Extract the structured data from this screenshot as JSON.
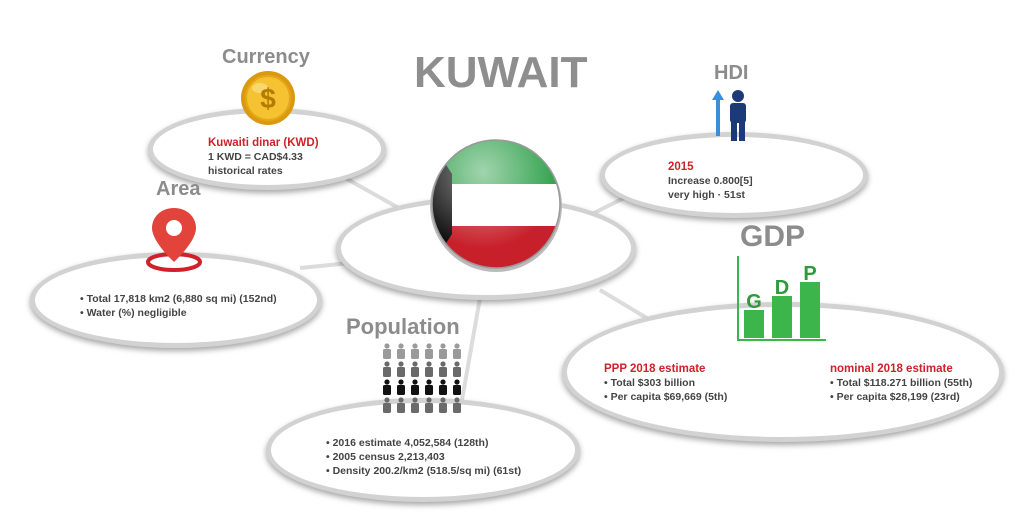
{
  "title": "KUWAIT",
  "colors": {
    "heading": "#8c8c8c",
    "accent_red": "#d0202a",
    "text": "#444444",
    "flag_green": "#2ea04a",
    "flag_red": "#c8202a",
    "flag_black": "#111111",
    "gdp_green": "#3cb64a",
    "hdi_blue": "#1d3a78",
    "coin_gold": "#f2b21a"
  },
  "currency": {
    "heading": "Currency",
    "icon": "dollar-coin-icon",
    "name": "Kuwaiti dinar (KWD)",
    "rate": "1 KWD = CAD$4.33",
    "note": "historical rates"
  },
  "hdi": {
    "heading": "HDI",
    "icon": "person-arrow-up-icon",
    "year": "2015",
    "value": "Increase 0.800[5]",
    "rank": "very high · 51st"
  },
  "area": {
    "heading": "Area",
    "icon": "map-pin-icon",
    "items": [
      "• Total 17,818 km2 (6,880 sq mi) (152nd)",
      "• Water (%) negligible"
    ]
  },
  "population": {
    "heading": "Population",
    "icon": "people-grid-icon",
    "items": [
      "• 2016 estimate 4,052,584 (128th)",
      "• 2005 census 2,213,403",
      "• Density 200.2/km2 (518.5/sq mi) (61st)"
    ]
  },
  "gdp": {
    "heading": "GDP",
    "icon": "gdp-bar-icon",
    "icon_letters": [
      "G",
      "D",
      "P"
    ],
    "ppp": {
      "title": "PPP 2018 estimate",
      "items": [
        "• Total $303 billion",
        "• Per capita $69,669 (5th)"
      ]
    },
    "nominal": {
      "title": "nominal 2018 estimate",
      "items": [
        "• Total $118.271 billion (55th)",
        "• Per capita $28,199 (23rd)"
      ]
    }
  },
  "center": {
    "icon": "kuwait-flag-orb-icon"
  }
}
